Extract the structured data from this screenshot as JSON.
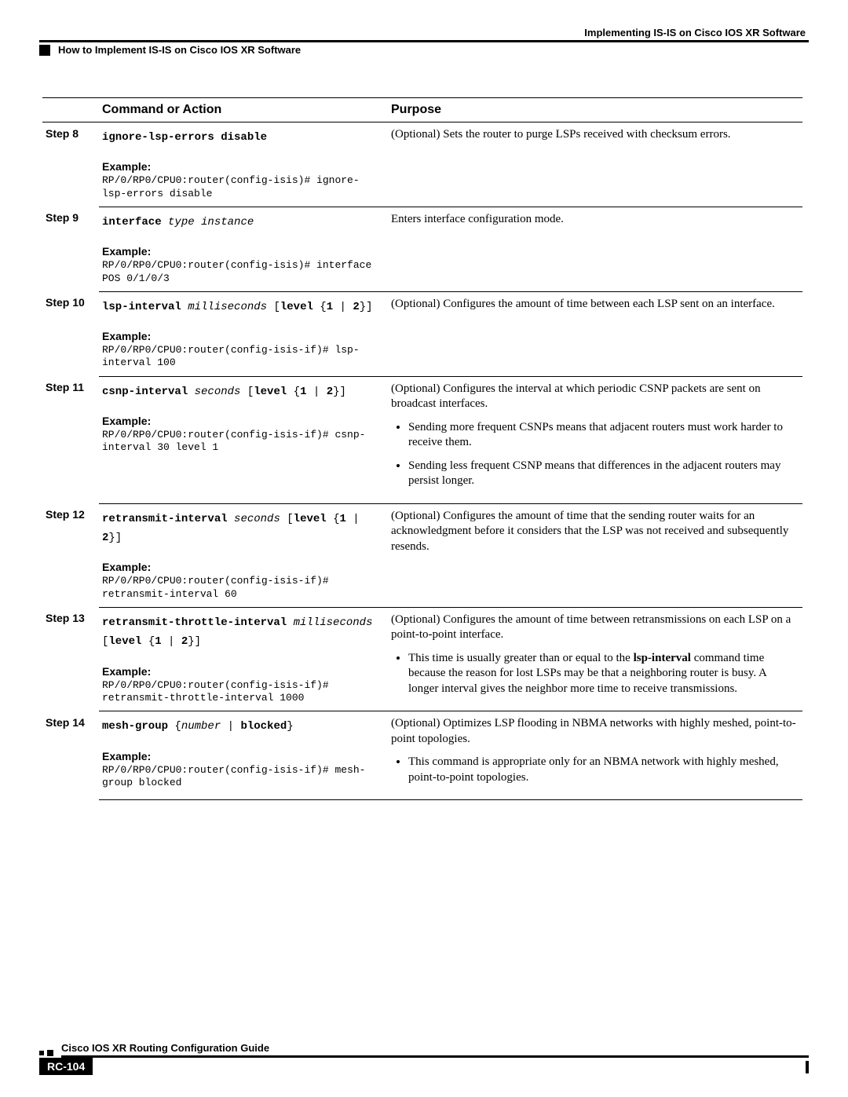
{
  "header": {
    "right": "Implementing IS-IS on Cisco IOS XR Software",
    "left": "How to Implement IS-IS on Cisco IOS XR Software"
  },
  "table": {
    "col_cmd": "Command or Action",
    "col_purpose": "Purpose",
    "example_label": "Example:"
  },
  "steps": {
    "s8": {
      "label": "Step 8",
      "cmd_bold": "ignore-lsp-errors disable",
      "example": "RP/0/RP0/CPU0:router(config-isis)# ignore-lsp-errors disable",
      "purpose": "(Optional) Sets the router to purge LSPs received with checksum errors."
    },
    "s9": {
      "label": "Step 9",
      "cmd_b1": "interface",
      "cmd_i1": " type instance",
      "example": "RP/0/RP0/CPU0:router(config-isis)# interface POS 0/1/0/3",
      "purpose": "Enters interface configuration mode."
    },
    "s10": {
      "label": "Step 10",
      "cmd_b1": "lsp-interval",
      "cmd_i1": " milliseconds",
      "cmd_p1": " [",
      "cmd_b2": "level",
      "cmd_p2": " {",
      "cmd_b3": "1",
      "cmd_p3": " | ",
      "cmd_b4": "2",
      "cmd_p4": "}]",
      "example": "RP/0/RP0/CPU0:router(config-isis-if)# lsp-interval 100",
      "purpose": "(Optional) Configures the amount of time between each LSP sent on an interface."
    },
    "s11": {
      "label": "Step 11",
      "cmd_b1": "csnp-interval",
      "cmd_i1": " seconds",
      "cmd_p1": " [",
      "cmd_b2": "level",
      "cmd_p2": " {",
      "cmd_b3": "1",
      "cmd_p3": " | ",
      "cmd_b4": "2",
      "cmd_p4": "}]",
      "example": "RP/0/RP0/CPU0:router(config-isis-if)# csnp-interval 30 level 1",
      "purpose": "(Optional) Configures the interval at which periodic CSNP packets are sent on broadcast interfaces.",
      "bul1": "Sending more frequent CSNPs means that adjacent routers must work harder to receive them.",
      "bul2": "Sending less frequent CSNP means that differences in the adjacent routers may persist longer."
    },
    "s12": {
      "label": "Step 12",
      "cmd_b1": "retransmit-interval",
      "cmd_i1": " seconds",
      "cmd_p1": " [",
      "cmd_b2": "level",
      "cmd_p2": " {",
      "cmd_b3": "1",
      "cmd_p3": " | ",
      "cmd_b4": "2",
      "cmd_p4": "}]",
      "example": "RP/0/RP0/CPU0:router(config-isis-if)# retransmit-interval 60",
      "purpose": "(Optional) Configures the amount of time that the sending router waits for an acknowledgment before it considers that the LSP was not received and subsequently resends."
    },
    "s13": {
      "label": "Step 13",
      "cmd_b1": "retransmit-throttle-interval",
      "cmd_i1": " milliseconds",
      "cmd_p1": " [",
      "cmd_b2": "level",
      "cmd_p2": " {",
      "cmd_b3": "1",
      "cmd_p3": " | ",
      "cmd_b4": "2",
      "cmd_p4": "}]",
      "example": "RP/0/RP0/CPU0:router(config-isis-if)# retransmit-throttle-interval 1000",
      "purpose": "(Optional) Configures the amount of time between retransmissions on each LSP on a point-to-point interface.",
      "bul1a": "This time is usually greater than or equal to the ",
      "bul1b": "lsp-interval",
      "bul1c": " command time because the reason for lost LSPs may be that a neighboring router is busy. A longer interval gives the neighbor more time to receive transmissions."
    },
    "s14": {
      "label": "Step 14",
      "cmd_b1": "mesh-group",
      "cmd_p1": " {",
      "cmd_i1": "number",
      "cmd_p2": " | ",
      "cmd_b2": "blocked",
      "cmd_p3": "}",
      "example": "RP/0/RP0/CPU0:router(config-isis-if)# mesh-group blocked",
      "purpose": "(Optional) Optimizes LSP flooding in NBMA networks with highly meshed, point-to-point topologies.",
      "bul1": "This command is appropriate only for an NBMA network with highly meshed, point-to-point topologies."
    }
  },
  "footer": {
    "title": "Cisco IOS XR Routing Configuration Guide",
    "page": "RC-104"
  }
}
